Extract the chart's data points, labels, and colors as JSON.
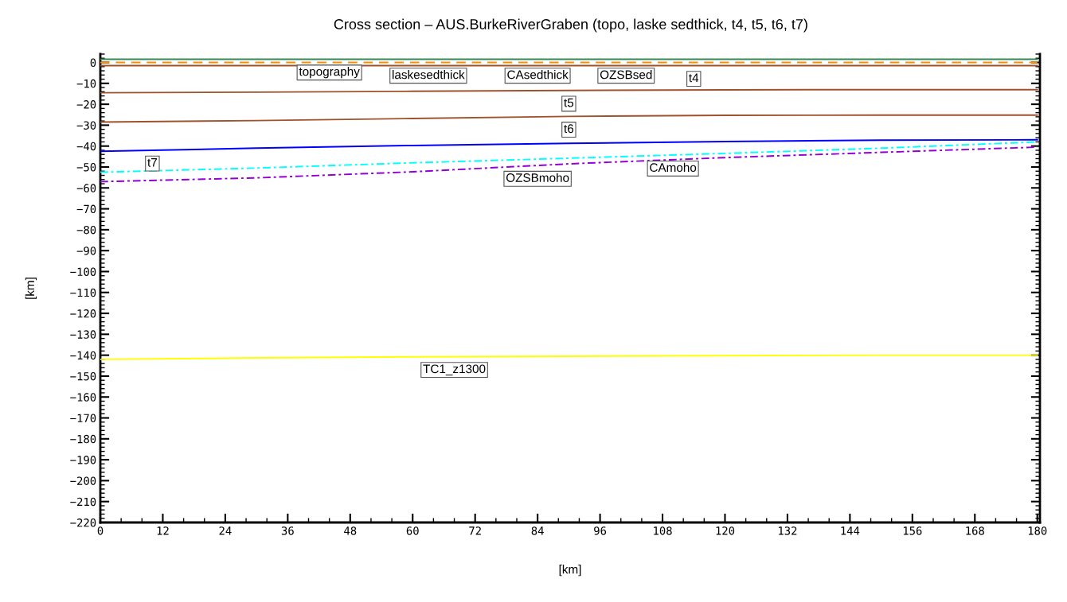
{
  "chart_data": {
    "type": "line",
    "title": "Cross section – AUS.BurkeRiverGraben (topo, laske sedthick, t4, t5, t6, t7)",
    "xlabel": "[km]",
    "ylabel": "[km]",
    "xlim": [
      0,
      180.5
    ],
    "ylim": [
      -220,
      4
    ],
    "xticks": [
      0,
      12,
      24,
      36,
      48,
      60,
      72,
      84,
      96,
      108,
      120,
      132,
      144,
      156,
      168,
      180
    ],
    "yticks": [
      -220,
      -210,
      -200,
      -190,
      -180,
      -170,
      -160,
      -150,
      -140,
      -130,
      -120,
      -110,
      -100,
      -90,
      -80,
      -70,
      -60,
      -50,
      -40,
      -30,
      -20,
      -10,
      0
    ],
    "grid": false,
    "legend": false,
    "series": [
      {
        "color": "#2e8b57",
        "line_style": "solid",
        "x": [
          0,
          30,
          60,
          90,
          120,
          150,
          180
        ],
        "values": [
          1.5,
          1.5,
          1.5,
          1.5,
          1.5,
          1.5,
          1.5
        ]
      },
      {
        "color": "#ff8c00",
        "line_style": "dashed",
        "x": [
          0,
          30,
          60,
          90,
          120,
          150,
          180
        ],
        "values": [
          0,
          0,
          0,
          0,
          0,
          0,
          0
        ]
      },
      {
        "color": "#a0522d",
        "line_style": "solid",
        "x": [
          0,
          30,
          60,
          90,
          120,
          150,
          180
        ],
        "values": [
          -1.5,
          -1.5,
          -1.5,
          -1.5,
          -1.5,
          -1.5,
          -1.5
        ]
      },
      {
        "color": "#a0522d",
        "line_style": "solid",
        "x": [
          0,
          30,
          60,
          90,
          120,
          150,
          180
        ],
        "values": [
          -14.5,
          -14.2,
          -13.8,
          -13.4,
          -13.1,
          -13,
          -13
        ]
      },
      {
        "color": "#a0522d",
        "line_style": "solid",
        "x": [
          0,
          30,
          60,
          90,
          120,
          150,
          180
        ],
        "values": [
          -28.5,
          -27.8,
          -26.8,
          -25.8,
          -25.3,
          -25.2,
          -25.2
        ]
      },
      {
        "color": "#0000ff",
        "line_style": "solid",
        "x": [
          0,
          30,
          60,
          90,
          120,
          150,
          180
        ],
        "values": [
          -42.5,
          -41,
          -39.7,
          -38.7,
          -37.8,
          -37.2,
          -37
        ]
      },
      {
        "color": "#00ffff",
        "line_style": "dashdot",
        "x": [
          0,
          30,
          60,
          90,
          120,
          150,
          180
        ],
        "values": [
          -52.5,
          -50.5,
          -48,
          -45.8,
          -43.5,
          -41,
          -38
        ]
      },
      {
        "color": "#9400d3",
        "line_style": "dashdot",
        "x": [
          0,
          30,
          60,
          90,
          120,
          150,
          180
        ],
        "values": [
          -57,
          -55.2,
          -52.3,
          -48.5,
          -45.5,
          -43,
          -40.5
        ]
      },
      {
        "color": "#ffff00",
        "line_style": "solid",
        "x": [
          0,
          30,
          60,
          90,
          120,
          150,
          180
        ],
        "values": [
          -142,
          -141.3,
          -140.8,
          -140.5,
          -140.2,
          -140,
          -140
        ]
      }
    ],
    "annotations": [
      {
        "text": "topography",
        "x": 44,
        "y": 1.5
      },
      {
        "text": "laskesedthick",
        "x": 63,
        "y": 0
      },
      {
        "text": "CAsedthick",
        "x": 84,
        "y": 0
      },
      {
        "text": "OZSBsed",
        "x": 101,
        "y": 0
      },
      {
        "text": "t4",
        "x": 114,
        "y": -1.5
      },
      {
        "text": "t5",
        "x": 90,
        "y": -13.4
      },
      {
        "text": "t6",
        "x": 90,
        "y": -25.8
      },
      {
        "text": "t7",
        "x": 10,
        "y": -42
      },
      {
        "text": "CAmoho",
        "x": 110,
        "y": -44.4
      },
      {
        "text": "OZSBmoho",
        "x": 84,
        "y": -49.3
      },
      {
        "text": "TC1_z1300",
        "x": 68,
        "y": -140.7
      }
    ]
  }
}
